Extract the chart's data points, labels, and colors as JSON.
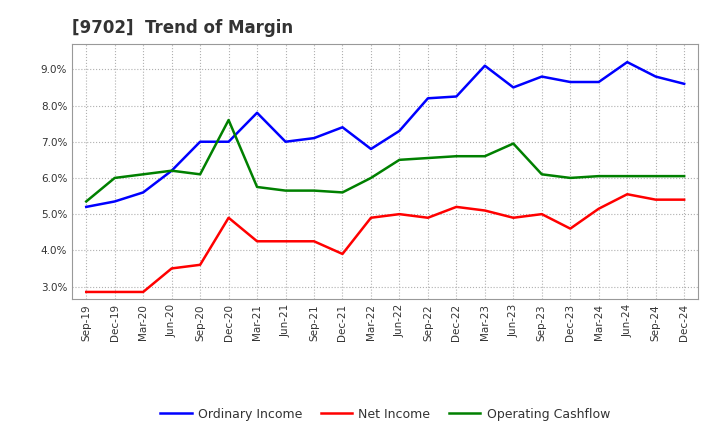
{
  "title": "[9702]  Trend of Margin",
  "x_labels": [
    "Sep-19",
    "Dec-19",
    "Mar-20",
    "Jun-20",
    "Sep-20",
    "Dec-20",
    "Mar-21",
    "Jun-21",
    "Sep-21",
    "Dec-21",
    "Mar-22",
    "Jun-22",
    "Sep-22",
    "Dec-22",
    "Mar-23",
    "Jun-23",
    "Sep-23",
    "Dec-23",
    "Mar-24",
    "Jun-24",
    "Sep-24",
    "Dec-24"
  ],
  "ordinary_income": [
    5.2,
    5.35,
    5.6,
    6.2,
    7.0,
    7.0,
    7.8,
    7.0,
    7.1,
    7.4,
    6.8,
    7.3,
    8.2,
    8.25,
    9.1,
    8.5,
    8.8,
    8.65,
    8.65,
    9.2,
    8.8,
    8.6
  ],
  "net_income": [
    2.85,
    2.85,
    2.85,
    3.5,
    3.6,
    4.9,
    4.25,
    4.25,
    4.25,
    3.9,
    4.9,
    5.0,
    4.9,
    5.2,
    5.1,
    4.9,
    5.0,
    4.6,
    5.15,
    5.55,
    5.4,
    5.4
  ],
  "operating_cashflow": [
    5.35,
    6.0,
    6.1,
    6.2,
    6.1,
    7.6,
    5.75,
    5.65,
    5.65,
    5.6,
    6.0,
    6.5,
    6.55,
    6.6,
    6.6,
    6.95,
    6.1,
    6.0,
    6.05,
    6.05,
    6.05,
    6.05
  ],
  "ordinary_income_color": "#0000ff",
  "net_income_color": "#ff0000",
  "operating_cashflow_color": "#008000",
  "ylim": [
    2.65,
    9.7
  ],
  "yticks": [
    3.0,
    4.0,
    5.0,
    6.0,
    7.0,
    8.0,
    9.0
  ],
  "background_color": "#ffffff",
  "grid_color": "#b0b0b0",
  "title_fontsize": 12,
  "title_color": "#333333",
  "tick_fontsize": 7.5,
  "legend_labels": [
    "Ordinary Income",
    "Net Income",
    "Operating Cashflow"
  ],
  "legend_fontsize": 9
}
